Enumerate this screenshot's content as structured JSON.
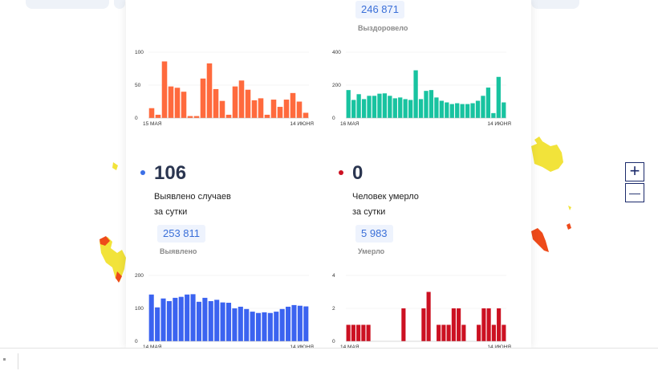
{
  "top_cards": [
    {
      "counter_total": "246 871",
      "counter_caption": "Выздоровело"
    }
  ],
  "stat_blocks": [
    {
      "value": "106",
      "dot_color": "#3b6fe6",
      "desc_line1": "Выявлено случаев",
      "desc_line2": "за сутки",
      "counter_total": "253 811",
      "counter_caption": "Выявлено"
    },
    {
      "value": "0",
      "dot_color": "#cc1122",
      "desc_line1": "Человек умерло",
      "desc_line2": "за сутки",
      "counter_total": "5 983",
      "counter_caption": "Умерло"
    }
  ],
  "zoom": {
    "plus": "+",
    "minus": "—"
  },
  "chart_data": [
    {
      "type": "bar",
      "color": "#ff6a3d",
      "y_ticks": [
        "100",
        "50",
        "0"
      ],
      "ylim": [
        0,
        100
      ],
      "x_start_label": "15 МАЯ",
      "x_end_label": "14 ИЮНЯ",
      "values": [
        15,
        5,
        86,
        48,
        46,
        40,
        3,
        3,
        60,
        83,
        44,
        26,
        5,
        48,
        57,
        43,
        27,
        30,
        5,
        28,
        17,
        28,
        38,
        25,
        8
      ]
    },
    {
      "type": "bar",
      "color": "#18c3a0",
      "y_ticks": [
        "400",
        "200",
        "0"
      ],
      "ylim": [
        0,
        400
      ],
      "x_start_label": "16 МАЯ",
      "x_end_label": "14 ИЮНЯ",
      "values": [
        170,
        110,
        145,
        115,
        135,
        135,
        148,
        150,
        135,
        120,
        125,
        115,
        110,
        290,
        115,
        165,
        170,
        125,
        105,
        95,
        85,
        90,
        85,
        85,
        90,
        105,
        135,
        185,
        30,
        250,
        95
      ]
    },
    {
      "type": "bar",
      "color": "#3b63f0",
      "y_ticks": [
        "200",
        "100",
        "0"
      ],
      "ylim": [
        0,
        200
      ],
      "x_start_label": "14 МАЯ",
      "x_end_label": "14 ИЮНЯ",
      "values": [
        142,
        103,
        130,
        122,
        132,
        135,
        142,
        143,
        120,
        132,
        122,
        126,
        118,
        117,
        100,
        105,
        98,
        90,
        86,
        88,
        86,
        90,
        98,
        105,
        110,
        108,
        106
      ]
    },
    {
      "type": "bar",
      "color": "#cc1122",
      "y_ticks": [
        "4",
        "2",
        "0"
      ],
      "ylim": [
        0,
        4
      ],
      "x_start_label": "14 МАЯ",
      "x_end_label": "14 ИЮНЯ",
      "values": [
        1,
        1,
        1,
        1,
        1,
        0,
        0,
        0,
        0,
        0,
        0,
        2,
        0,
        0,
        0,
        2,
        3,
        0,
        1,
        1,
        1,
        2,
        2,
        1,
        0,
        0,
        1,
        2,
        2,
        1,
        2,
        1
      ]
    }
  ]
}
